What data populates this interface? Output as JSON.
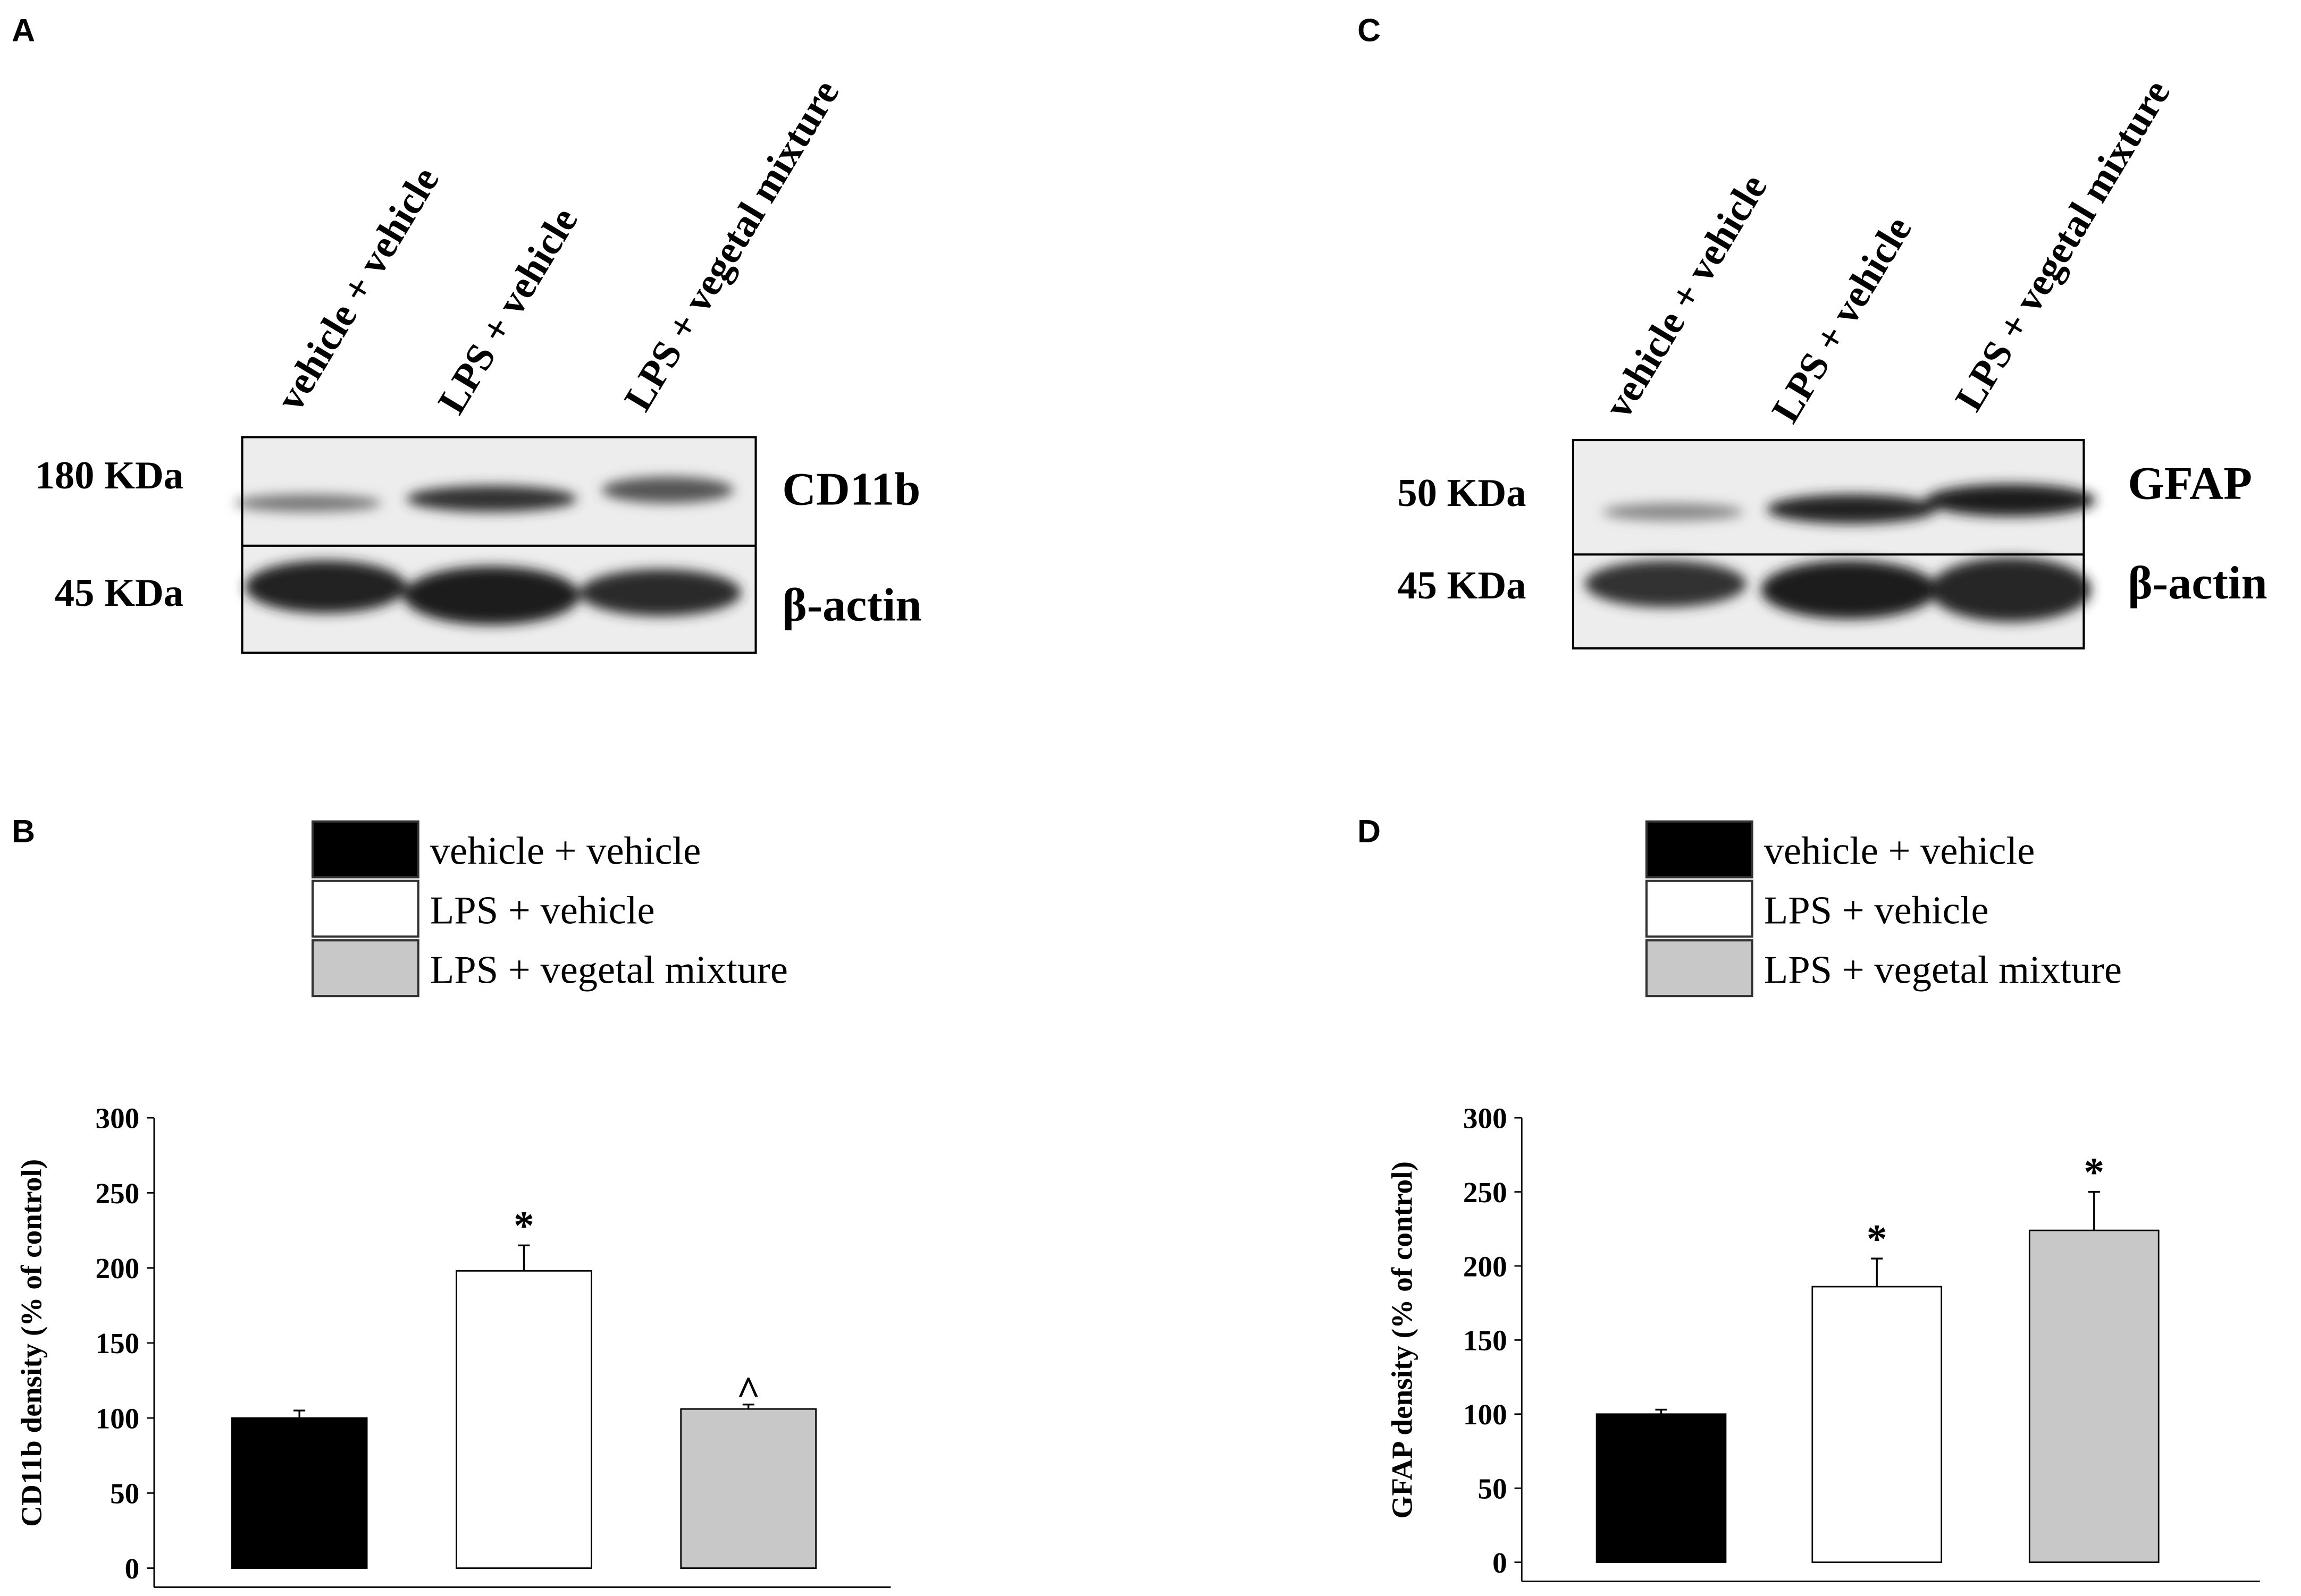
{
  "panel_labels": [
    "A",
    "B",
    "C",
    "D"
  ],
  "blots": [
    {
      "lanes": [
        "vehicle + vehicle",
        "LPS + vehicle",
        "LPS + vegetal mixture"
      ],
      "rows": [
        {
          "size": "180 KDa",
          "protein": "CD11b"
        },
        {
          "size": "45 KDa",
          "protein": "β-actin"
        }
      ]
    },
    {
      "lanes": [
        "vehicle + vehicle",
        "LPS + vehicle",
        "LPS + vegetal mixture"
      ],
      "rows": [
        {
          "size": "50 KDa",
          "protein": "GFAP"
        },
        {
          "size": "45 KDa",
          "protein": "β-actin"
        }
      ]
    }
  ],
  "chart_data": [
    {
      "type": "bar",
      "ylabel": "CD11b density (% of control)",
      "categories": [
        "vehicle + vehicle",
        "LPS + vehicle",
        "LPS + vegetal mixture"
      ],
      "values": [
        100,
        198,
        106
      ],
      "errors": [
        5,
        17,
        3
      ],
      "colors": [
        "#000000",
        "#ffffff",
        "#c8c8c8"
      ],
      "annotations": [
        null,
        "*",
        "^"
      ],
      "ylim": [
        0,
        300
      ],
      "yticks": [
        0,
        50,
        100,
        150,
        200,
        250,
        300
      ]
    },
    {
      "type": "bar",
      "ylabel": "GFAP density (% of control)",
      "categories": [
        "vehicle + vehicle",
        "LPS + vehicle",
        "LPS + vegetal mixture"
      ],
      "values": [
        100,
        186,
        224
      ],
      "errors": [
        3,
        19,
        26
      ],
      "colors": [
        "#000000",
        "#ffffff",
        "#c8c8c8"
      ],
      "annotations": [
        null,
        "*",
        "*"
      ],
      "ylim": [
        0,
        300
      ],
      "yticks": [
        0,
        50,
        100,
        150,
        200,
        250,
        300
      ]
    }
  ]
}
